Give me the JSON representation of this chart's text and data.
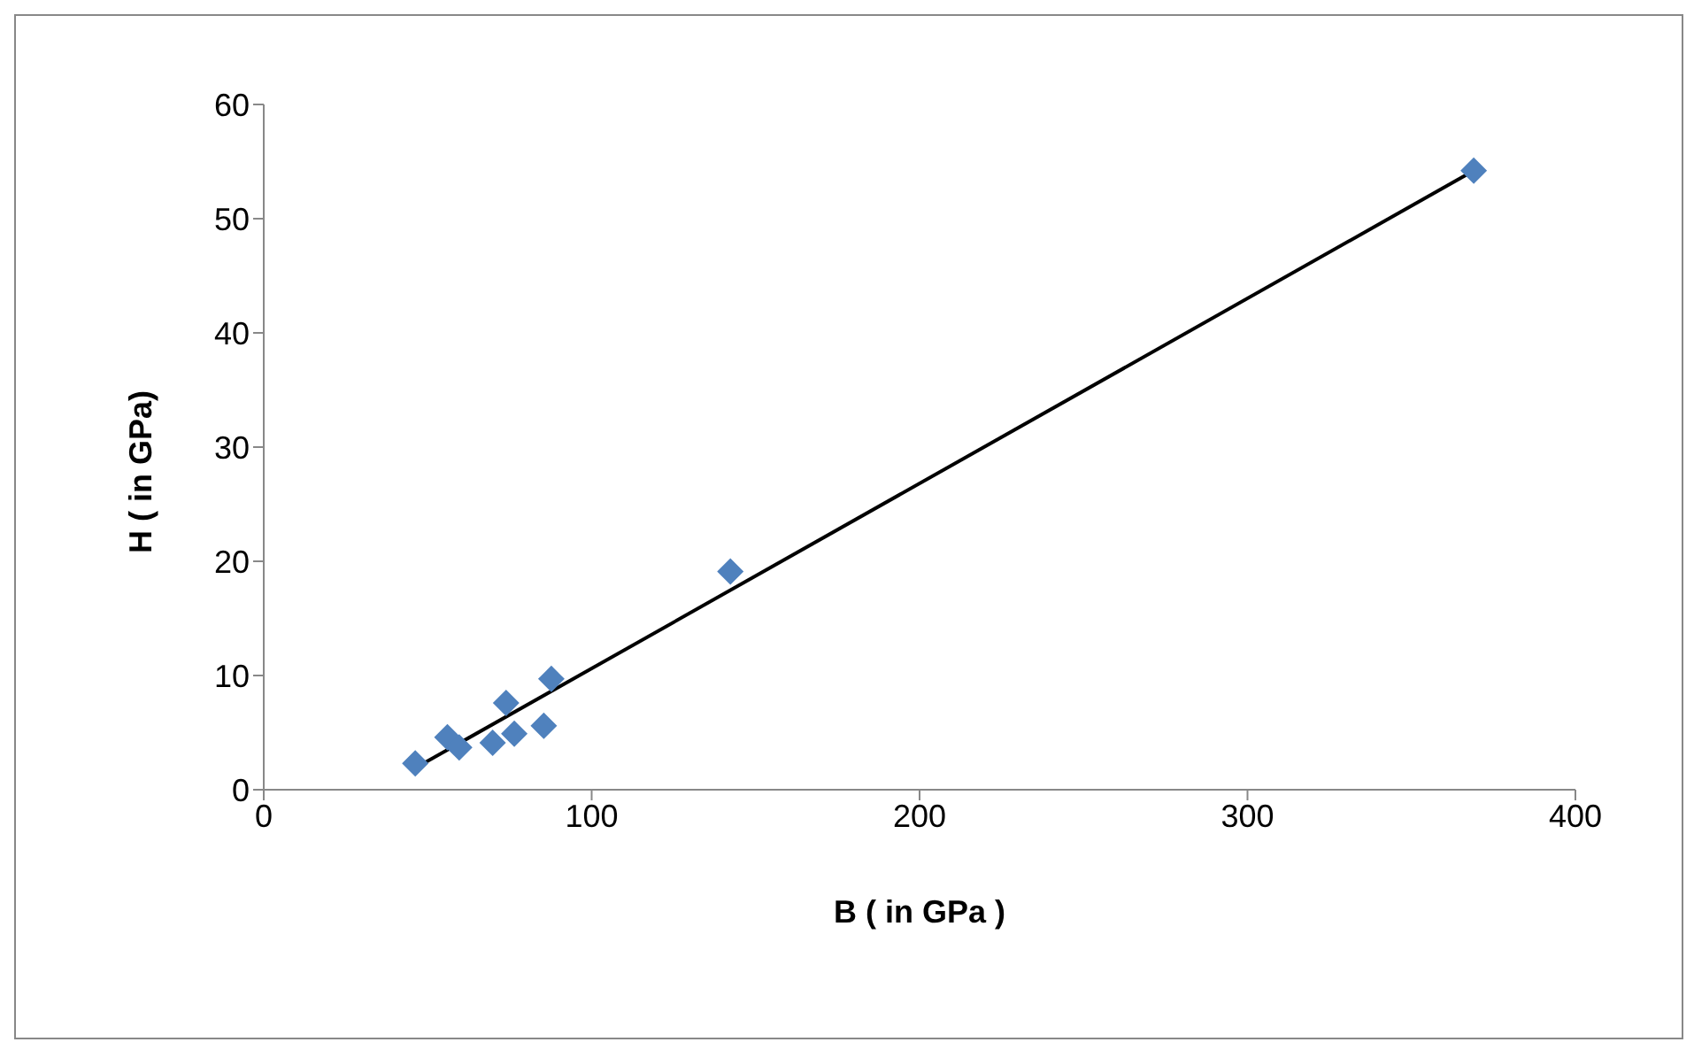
{
  "chart_data": {
    "type": "scatter",
    "xlabel": "B ( in GPa )",
    "ylabel": "H ( in GPa)",
    "x": [
      46.2,
      56,
      59.6,
      69.8,
      73.9,
      76.4,
      85.4,
      87.7,
      142.3,
      369
    ],
    "series": [
      {
        "color": "#4f81bd",
        "marker": "diamond",
        "values": [
          2.3,
          4.6,
          3.7,
          4.1,
          7.6,
          4.9,
          5.6,
          9.7,
          19.1,
          54.2
        ]
      },
      {
        "type": "line",
        "color": "#000000",
        "x": [
          46.2,
          369
        ],
        "values": [
          1.9,
          54.2
        ]
      }
    ],
    "xlim": [
      0,
      400
    ],
    "xticks": [
      0,
      100,
      200,
      300,
      400
    ],
    "ylim": [
      0,
      60
    ],
    "yticks": [
      0,
      10,
      20,
      30,
      40,
      50,
      60
    ],
    "grid": false,
    "legend": false
  }
}
